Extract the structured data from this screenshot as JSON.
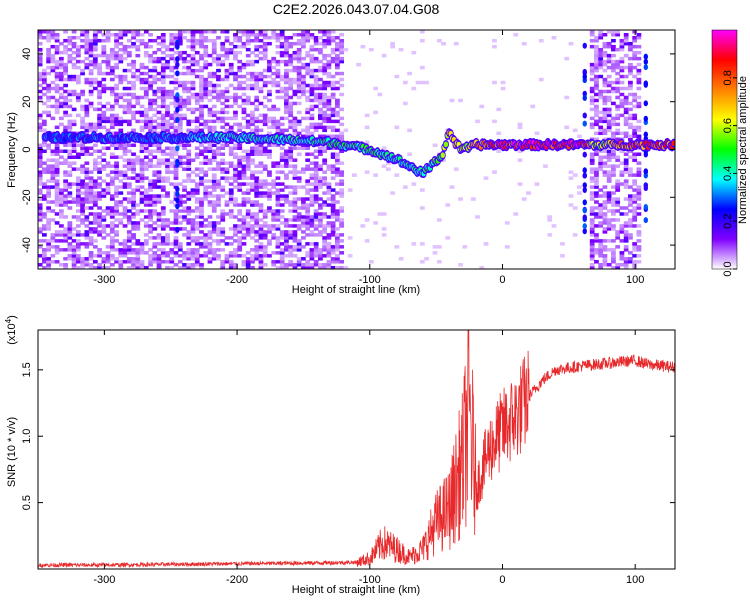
{
  "title": "C2E2.2026.043.07.04.G08",
  "chart_data": [
    {
      "type": "heatmap",
      "xlabel": "Height of straight line (km)",
      "ylabel": "Frequency (Hz)",
      "xlim": [
        -350,
        130
      ],
      "ylim": [
        -50,
        50
      ],
      "xticks": [
        "-300",
        "-200",
        "-100",
        "0",
        "100"
      ],
      "xtick_values": [
        -300,
        -200,
        -100,
        0,
        100
      ],
      "yticks": [
        "-40",
        "-20",
        "0",
        "20",
        "40"
      ],
      "ytick_values": [
        -40,
        -20,
        0,
        20,
        40
      ],
      "colorbar": {
        "label": "Normalized spectral amplitude",
        "range": [
          0,
          1
        ],
        "ticks": [
          "0.0",
          "0.2",
          "0.4",
          "0.6",
          "0.8"
        ],
        "tick_values": [
          0.0,
          0.2,
          0.4,
          0.6,
          0.8
        ],
        "colors": [
          "#ffffff",
          "#8000ff",
          "#0000ff",
          "#00ffff",
          "#00ff00",
          "#ffff00",
          "#ff8000",
          "#ff0000",
          "#ff00ff"
        ]
      },
      "signal_track": {
        "x": [
          -345,
          -300,
          -250,
          -200,
          -160,
          -130,
          -100,
          -80,
          -60,
          -45,
          -40,
          -35,
          -30,
          -20,
          0,
          20,
          60,
          70,
          100,
          130
        ],
        "y": [
          5,
          5,
          5,
          5,
          4,
          3,
          0,
          -4,
          -10,
          -2,
          8,
          2,
          0,
          2,
          2,
          2,
          2,
          2,
          2,
          2
        ],
        "amplitude": [
          0.3,
          0.3,
          0.3,
          0.4,
          0.4,
          0.45,
          0.45,
          0.4,
          0.4,
          0.55,
          0.7,
          0.6,
          0.6,
          0.7,
          0.85,
          0.9,
          0.9,
          0.55,
          0.8,
          0.8
        ]
      },
      "noise_bands_x": [
        [
          -350,
          -120
        ],
        [
          65,
          105
        ]
      ],
      "vertical_streaks_x": [
        -245,
        62,
        108
      ]
    },
    {
      "type": "line",
      "xlabel": "Height of straight line (km)",
      "ylabel": "SNR (10 * v/v)",
      "y_multiplier": "(x10",
      "y_multiplier_exp": "4",
      "y_multiplier_close": ")",
      "xlim": [
        -350,
        130
      ],
      "ylim": [
        0,
        18000
      ],
      "xticks": [
        "-300",
        "-200",
        "-100",
        "0",
        "100"
      ],
      "xtick_values": [
        -300,
        -200,
        -100,
        0,
        100
      ],
      "yticks": [
        "0.5",
        "1.0",
        "1.5"
      ],
      "ytick_values": [
        5000,
        10000,
        15000
      ],
      "color": "#e8292b",
      "series": [
        {
          "x": [
            -350,
            -300,
            -250,
            -200,
            -150,
            -110,
            -100,
            -90,
            -80,
            -70,
            -60,
            -50,
            -40,
            -30,
            -25,
            -20,
            -10,
            0,
            10,
            20,
            30,
            40,
            60,
            80,
            100,
            110,
            120,
            130
          ],
          "y": [
            300,
            300,
            350,
            400,
            450,
            500,
            800,
            2000,
            1500,
            900,
            1500,
            3500,
            4500,
            8000,
            12000,
            6000,
            9000,
            10500,
            11500,
            13000,
            14200,
            15000,
            15300,
            15500,
            15700,
            15400,
            15300,
            15200
          ]
        }
      ]
    }
  ]
}
